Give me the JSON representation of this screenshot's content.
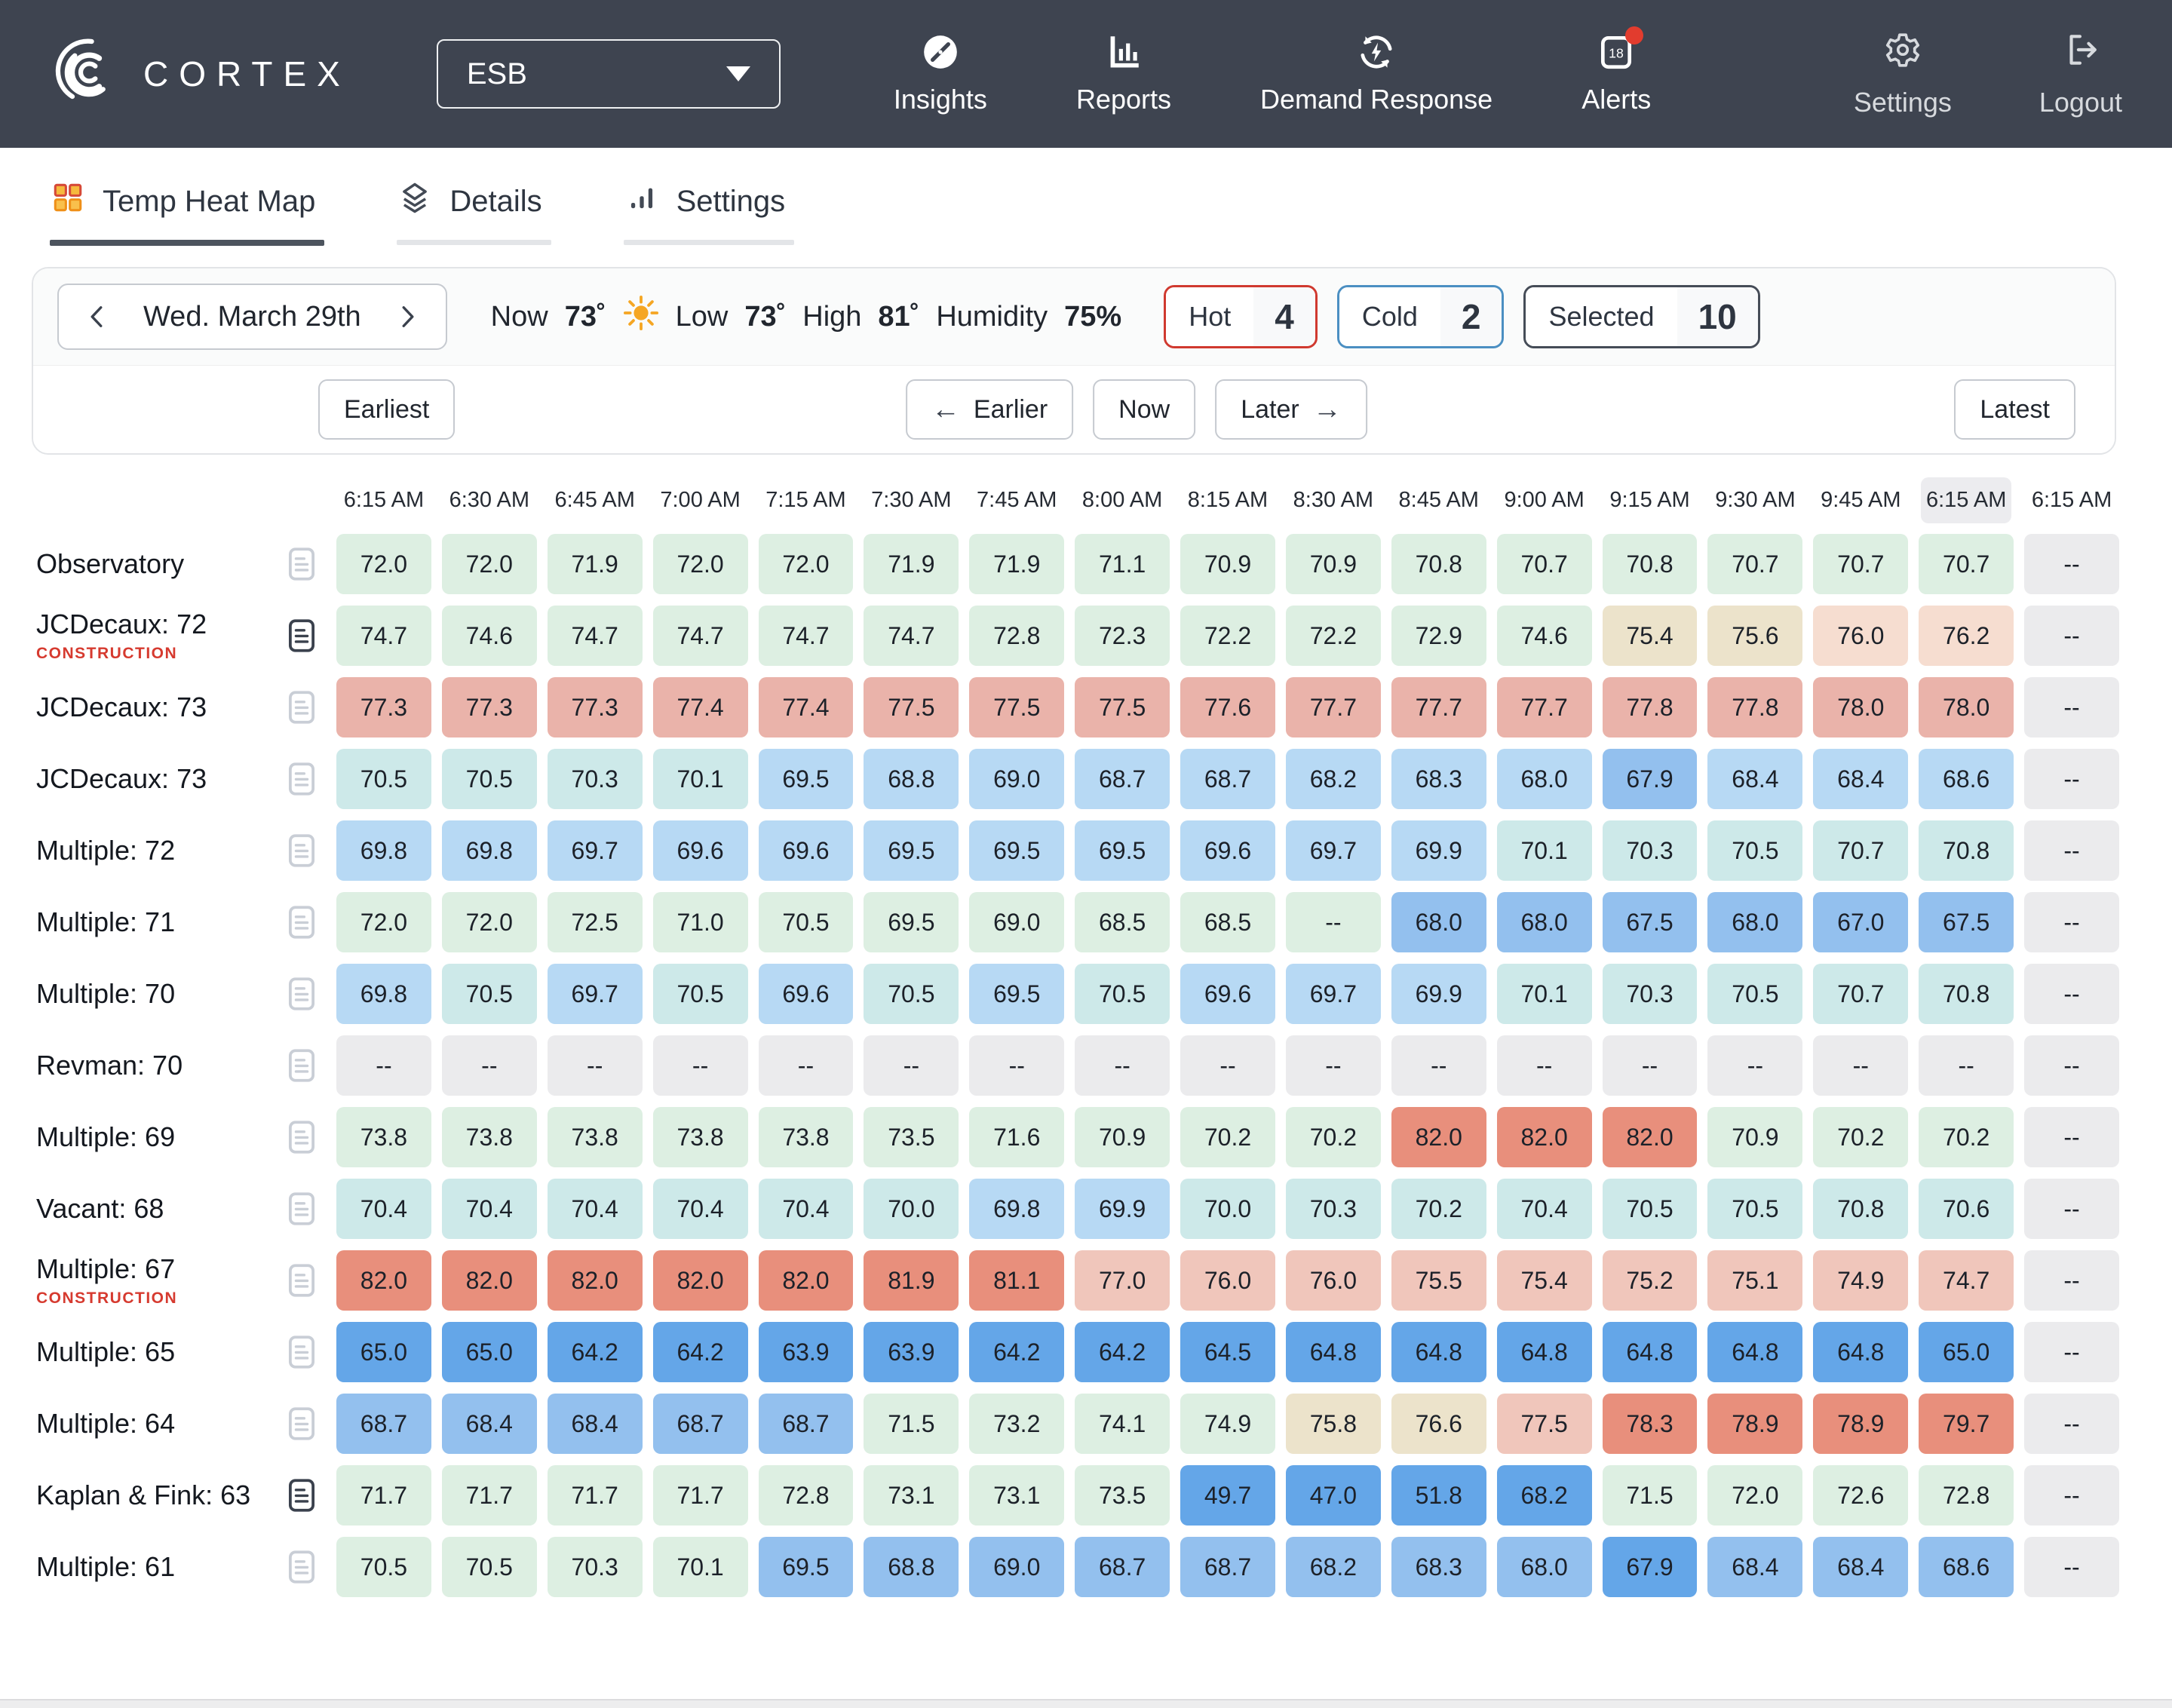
{
  "header": {
    "brand": "CORTEX",
    "building_selector": {
      "value": "ESB"
    },
    "nav": [
      {
        "label": "Insights",
        "icon": "compass-icon"
      },
      {
        "label": "Reports",
        "icon": "bar-chart-icon"
      },
      {
        "label": "Demand Response",
        "icon": "sync-bolt-icon"
      },
      {
        "label": "Alerts",
        "icon": "alerts-calendar-icon",
        "badge_count": "18",
        "badge_dot_color": "#e23c2e"
      }
    ],
    "actions": [
      {
        "label": "Settings",
        "icon": "gear-icon"
      },
      {
        "label": "Logout",
        "icon": "logout-icon"
      }
    ]
  },
  "tabs": [
    {
      "label": "Temp Heat Map",
      "active": true
    },
    {
      "label": "Details",
      "active": false
    },
    {
      "label": "Settings",
      "active": false
    }
  ],
  "toolbar": {
    "date_nav": {
      "label": "Wed. March  29th"
    },
    "weather": {
      "now_label": "Now",
      "now_value": "73˚",
      "low_label": "Low",
      "low_value": "73˚",
      "high_label": "High",
      "high_value": "81˚",
      "humidity_label": "Humidity",
      "humidity_value": "75%",
      "sun_icon_color": "#f5a623"
    },
    "filters": [
      {
        "label": "Hot",
        "count": "4",
        "color": "#d0392f"
      },
      {
        "label": "Cold",
        "count": "2",
        "color": "#4b8fc2"
      },
      {
        "label": "Selected",
        "count": "10",
        "color": "#454c57"
      }
    ],
    "timeline": {
      "earliest": "Earliest",
      "earlier": "Earlier",
      "now": "Now",
      "later": "Later",
      "latest": "Latest"
    }
  },
  "heatmap": {
    "time_columns": [
      "6:15 AM",
      "6:30 AM",
      "6:45 AM",
      "7:00 AM",
      "7:15 AM",
      "7:30 AM",
      "7:45 AM",
      "8:00 AM",
      "8:15 AM",
      "8:30 AM",
      "8:45 AM",
      "9:00 AM",
      "9:15 AM",
      "9:30 AM",
      "9:45 AM",
      "6:15 AM",
      "6:15 AM"
    ],
    "highlighted_column": 15,
    "palette": {
      "green": "#ddefe2",
      "cyan": "#cde9e9",
      "lightblue": "#b7d9f4",
      "medblue": "#93c0ee",
      "strongblue": "#64a6e8",
      "beige": "#ece3cb",
      "peach": "#f6ddd0",
      "lightpink": "#f0c6bb",
      "salmon": "#eab3aa",
      "strongsalmon": "#e88f7c",
      "gray": "#ebebed"
    },
    "rows": [
      {
        "label": "Observatory",
        "tag": "",
        "note": "light",
        "values": [
          "72.0",
          "72.0",
          "71.9",
          "72.0",
          "72.0",
          "71.9",
          "71.9",
          "71.1",
          "70.9",
          "70.9",
          "70.8",
          "70.7",
          "70.8",
          "70.7",
          "70.7",
          "70.7",
          "--"
        ],
        "colors": [
          "green",
          "green",
          "green",
          "green",
          "green",
          "green",
          "green",
          "green",
          "green",
          "green",
          "green",
          "green",
          "green",
          "green",
          "green",
          "green",
          "gray"
        ]
      },
      {
        "label": "JCDecaux: 72",
        "tag": "CONSTRUCTION",
        "note": "dark",
        "values": [
          "74.7",
          "74.6",
          "74.7",
          "74.7",
          "74.7",
          "74.7",
          "72.8",
          "72.3",
          "72.2",
          "72.2",
          "72.9",
          "74.6",
          "75.4",
          "75.6",
          "76.0",
          "76.2",
          "--"
        ],
        "colors": [
          "green",
          "green",
          "green",
          "green",
          "green",
          "green",
          "green",
          "green",
          "green",
          "green",
          "green",
          "green",
          "beige",
          "beige",
          "peach",
          "peach",
          "gray"
        ]
      },
      {
        "label": "JCDecaux: 73",
        "tag": "",
        "note": "light",
        "values": [
          "77.3",
          "77.3",
          "77.3",
          "77.4",
          "77.4",
          "77.5",
          "77.5",
          "77.5",
          "77.6",
          "77.7",
          "77.7",
          "77.7",
          "77.8",
          "77.8",
          "78.0",
          "78.0",
          "--"
        ],
        "colors": [
          "salmon",
          "salmon",
          "salmon",
          "salmon",
          "salmon",
          "salmon",
          "salmon",
          "salmon",
          "salmon",
          "salmon",
          "salmon",
          "salmon",
          "salmon",
          "salmon",
          "salmon",
          "salmon",
          "gray"
        ]
      },
      {
        "label": "JCDecaux: 73",
        "tag": "",
        "note": "light",
        "values": [
          "70.5",
          "70.5",
          "70.3",
          "70.1",
          "69.5",
          "68.8",
          "69.0",
          "68.7",
          "68.7",
          "68.2",
          "68.3",
          "68.0",
          "67.9",
          "68.4",
          "68.4",
          "68.6",
          "--"
        ],
        "colors": [
          "cyan",
          "cyan",
          "cyan",
          "cyan",
          "lightblue",
          "lightblue",
          "lightblue",
          "lightblue",
          "lightblue",
          "lightblue",
          "lightblue",
          "lightblue",
          "medblue",
          "lightblue",
          "lightblue",
          "lightblue",
          "gray"
        ]
      },
      {
        "label": "Multiple: 72",
        "tag": "",
        "note": "light",
        "values": [
          "69.8",
          "69.8",
          "69.7",
          "69.6",
          "69.6",
          "69.5",
          "69.5",
          "69.5",
          "69.6",
          "69.7",
          "69.9",
          "70.1",
          "70.3",
          "70.5",
          "70.7",
          "70.8",
          "--"
        ],
        "colors": [
          "lightblue",
          "lightblue",
          "lightblue",
          "lightblue",
          "lightblue",
          "lightblue",
          "lightblue",
          "lightblue",
          "lightblue",
          "lightblue",
          "lightblue",
          "cyan",
          "cyan",
          "cyan",
          "cyan",
          "cyan",
          "gray"
        ]
      },
      {
        "label": "Multiple: 71",
        "tag": "",
        "note": "light",
        "values": [
          "72.0",
          "72.0",
          "72.5",
          "71.0",
          "70.5",
          "69.5",
          "69.0",
          "68.5",
          "68.5",
          "--",
          "68.0",
          "68.0",
          "67.5",
          "68.0",
          "67.0",
          "67.5",
          "--"
        ],
        "colors": [
          "green",
          "green",
          "green",
          "green",
          "green",
          "green",
          "green",
          "green",
          "green",
          "green",
          "medblue",
          "medblue",
          "medblue",
          "medblue",
          "medblue",
          "medblue",
          "gray"
        ]
      },
      {
        "label": "Multiple: 70",
        "tag": "",
        "note": "light",
        "values": [
          "69.8",
          "70.5",
          "69.7",
          "70.5",
          "69.6",
          "70.5",
          "69.5",
          "70.5",
          "69.6",
          "69.7",
          "69.9",
          "70.1",
          "70.3",
          "70.5",
          "70.7",
          "70.8",
          "--"
        ],
        "colors": [
          "lightblue",
          "cyan",
          "lightblue",
          "cyan",
          "lightblue",
          "cyan",
          "lightblue",
          "cyan",
          "lightblue",
          "lightblue",
          "lightblue",
          "cyan",
          "cyan",
          "cyan",
          "cyan",
          "cyan",
          "gray"
        ]
      },
      {
        "label": "Revman: 70",
        "tag": "",
        "note": "light",
        "values": [
          "--",
          "--",
          "--",
          "--",
          "--",
          "--",
          "--",
          "--",
          "--",
          "--",
          "--",
          "--",
          "--",
          "--",
          "--",
          "--",
          "--"
        ],
        "colors": [
          "gray",
          "gray",
          "gray",
          "gray",
          "gray",
          "gray",
          "gray",
          "gray",
          "gray",
          "gray",
          "gray",
          "gray",
          "gray",
          "gray",
          "gray",
          "gray",
          "gray"
        ]
      },
      {
        "label": "Multiple: 69",
        "tag": "",
        "note": "light",
        "values": [
          "73.8",
          "73.8",
          "73.8",
          "73.8",
          "73.8",
          "73.5",
          "71.6",
          "70.9",
          "70.2",
          "70.2",
          "82.0",
          "82.0",
          "82.0",
          "70.9",
          "70.2",
          "70.2",
          "--"
        ],
        "colors": [
          "green",
          "green",
          "green",
          "green",
          "green",
          "green",
          "green",
          "green",
          "green",
          "green",
          "strongsalmon",
          "strongsalmon",
          "strongsalmon",
          "green",
          "green",
          "green",
          "gray"
        ]
      },
      {
        "label": "Vacant: 68",
        "tag": "",
        "note": "light",
        "values": [
          "70.4",
          "70.4",
          "70.4",
          "70.4",
          "70.4",
          "70.0",
          "69.8",
          "69.9",
          "70.0",
          "70.3",
          "70.2",
          "70.4",
          "70.5",
          "70.5",
          "70.8",
          "70.6",
          "--"
        ],
        "colors": [
          "cyan",
          "cyan",
          "cyan",
          "cyan",
          "cyan",
          "cyan",
          "lightblue",
          "lightblue",
          "cyan",
          "cyan",
          "cyan",
          "cyan",
          "cyan",
          "cyan",
          "cyan",
          "cyan",
          "gray"
        ]
      },
      {
        "label": "Multiple: 67",
        "tag": "CONSTRUCTION",
        "note": "light",
        "values": [
          "82.0",
          "82.0",
          "82.0",
          "82.0",
          "82.0",
          "81.9",
          "81.1",
          "77.0",
          "76.0",
          "76.0",
          "75.5",
          "75.4",
          "75.2",
          "75.1",
          "74.9",
          "74.7",
          "--"
        ],
        "colors": [
          "strongsalmon",
          "strongsalmon",
          "strongsalmon",
          "strongsalmon",
          "strongsalmon",
          "strongsalmon",
          "strongsalmon",
          "lightpink",
          "lightpink",
          "lightpink",
          "lightpink",
          "lightpink",
          "lightpink",
          "lightpink",
          "lightpink",
          "lightpink",
          "gray"
        ]
      },
      {
        "label": "Multiple: 65",
        "tag": "",
        "note": "light",
        "values": [
          "65.0",
          "65.0",
          "64.2",
          "64.2",
          "63.9",
          "63.9",
          "64.2",
          "64.2",
          "64.5",
          "64.8",
          "64.8",
          "64.8",
          "64.8",
          "64.8",
          "64.8",
          "65.0",
          "--"
        ],
        "colors": [
          "strongblue",
          "strongblue",
          "strongblue",
          "strongblue",
          "strongblue",
          "strongblue",
          "strongblue",
          "strongblue",
          "strongblue",
          "strongblue",
          "strongblue",
          "strongblue",
          "strongblue",
          "strongblue",
          "strongblue",
          "strongblue",
          "gray"
        ]
      },
      {
        "label": "Multiple: 64",
        "tag": "",
        "note": "light",
        "values": [
          "68.7",
          "68.4",
          "68.4",
          "68.7",
          "68.7",
          "71.5",
          "73.2",
          "74.1",
          "74.9",
          "75.8",
          "76.6",
          "77.5",
          "78.3",
          "78.9",
          "78.9",
          "79.7",
          "--"
        ],
        "colors": [
          "medblue",
          "medblue",
          "medblue",
          "medblue",
          "medblue",
          "green",
          "green",
          "green",
          "green",
          "beige",
          "beige",
          "lightpink",
          "strongsalmon",
          "strongsalmon",
          "strongsalmon",
          "strongsalmon",
          "gray"
        ]
      },
      {
        "label": "Kaplan & Fink: 63",
        "tag": "",
        "note": "dark",
        "values": [
          "71.7",
          "71.7",
          "71.7",
          "71.7",
          "72.8",
          "73.1",
          "73.1",
          "73.5",
          "49.7",
          "47.0",
          "51.8",
          "68.2",
          "71.5",
          "72.0",
          "72.6",
          "72.8",
          "--"
        ],
        "colors": [
          "green",
          "green",
          "green",
          "green",
          "green",
          "green",
          "green",
          "green",
          "strongblue",
          "strongblue",
          "strongblue",
          "strongblue",
          "green",
          "green",
          "green",
          "green",
          "gray"
        ]
      },
      {
        "label": "Multiple: 61",
        "tag": "",
        "note": "light",
        "values": [
          "70.5",
          "70.5",
          "70.3",
          "70.1",
          "69.5",
          "68.8",
          "69.0",
          "68.7",
          "68.7",
          "68.2",
          "68.3",
          "68.0",
          "67.9",
          "68.4",
          "68.4",
          "68.6",
          "--"
        ],
        "colors": [
          "green",
          "green",
          "green",
          "green",
          "medblue",
          "medblue",
          "medblue",
          "medblue",
          "medblue",
          "medblue",
          "medblue",
          "medblue",
          "strongblue",
          "medblue",
          "medblue",
          "medblue",
          "gray"
        ]
      }
    ]
  }
}
